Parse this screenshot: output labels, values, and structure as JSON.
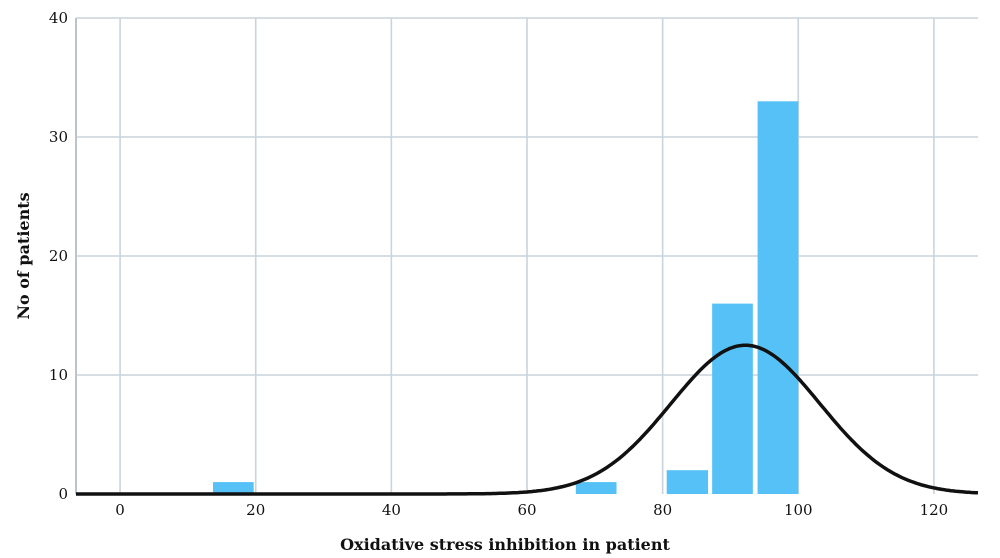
{
  "chart_data": {
    "type": "bar",
    "subtype": "histogram",
    "title": "",
    "xlabel": "Oxidative stress inhibition in patient",
    "ylabel": "No of patients",
    "xlim": [
      -6.5,
      126.5
    ],
    "ylim": [
      0,
      40
    ],
    "x_ticks": [
      0,
      20,
      40,
      60,
      80,
      100,
      120
    ],
    "y_ticks": [
      0,
      10,
      20,
      30,
      40
    ],
    "x_tick_labels": [
      "0",
      "20",
      "40",
      "60",
      "80",
      "100",
      "120"
    ],
    "y_tick_labels": [
      "0",
      "10",
      "20",
      "30",
      "40"
    ],
    "bins": [
      {
        "start": 13.7,
        "end": 19.7,
        "count": 1
      },
      {
        "start": 67.2,
        "end": 73.2,
        "count": 1
      },
      {
        "start": 80.6,
        "end": 86.7,
        "count": 2
      },
      {
        "start": 87.3,
        "end": 93.3,
        "count": 16
      },
      {
        "start": 94.0,
        "end": 100.0,
        "count": 33
      }
    ],
    "normal_curve": {
      "mean": 92.2,
      "sd": 11.0,
      "peak": 12.5
    },
    "grid": true,
    "legend": "none",
    "colors": {
      "bar": "#56c1f6",
      "curve": "#111111",
      "grid": "#c9d4dc",
      "axis": "#b9c4cc"
    }
  }
}
